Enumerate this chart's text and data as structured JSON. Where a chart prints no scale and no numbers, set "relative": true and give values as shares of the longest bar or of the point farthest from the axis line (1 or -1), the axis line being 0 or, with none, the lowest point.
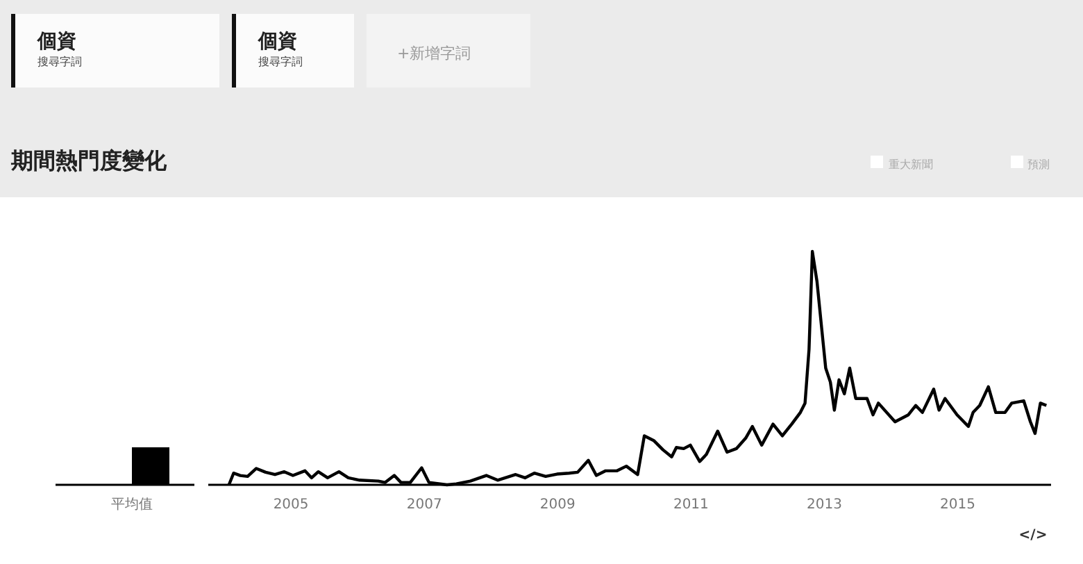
{
  "chart_data": [
    {
      "type": "bar",
      "relative": true,
      "categories": [
        "平均值"
      ],
      "series": [
        {
          "values": [
            null
          ]
        },
        {
          "color": "#000000",
          "values": [
            1
          ]
        }
      ]
    },
    {
      "type": "line",
      "title": "期間熱門度變化",
      "relative": true,
      "xlim": [
        2003.76,
        2016.4
      ],
      "xticks": [
        2005,
        2007,
        2009,
        2011,
        2013,
        2015
      ],
      "annotations": [
        "個資",
        "搜尋字詞",
        "個資",
        "搜尋字詞",
        "+新增字詞",
        "重大新聞",
        "預測",
        "</>"
      ],
      "series": [
        {
          "color": "#000000",
          "x": [
            2004.07,
            2004.14,
            2004.24,
            2004.35,
            2004.48,
            2004.62,
            2004.76,
            2004.9,
            2005.03,
            2005.21,
            2005.31,
            2005.41,
            2005.55,
            2005.72,
            2005.86,
            2006.03,
            2006.31,
            2006.41,
            2006.55,
            2006.65,
            2006.79,
            2006.96,
            2007.07,
            2007.34,
            2007.48,
            2007.69,
            2007.93,
            2008.1,
            2008.37,
            2008.51,
            2008.65,
            2008.82,
            2008.99,
            2009.17,
            2009.3,
            2009.46,
            2009.58,
            2009.72,
            2009.89,
            2010.03,
            2010.2,
            2010.3,
            2010.44,
            2010.58,
            2010.71,
            2010.78,
            2010.89,
            2010.99,
            2011.13,
            2011.23,
            2011.4,
            2011.54,
            2011.68,
            2011.82,
            2011.92,
            2012.06,
            2012.23,
            2012.37,
            2012.51,
            2012.64,
            2012.71,
            2012.77,
            2012.82,
            2012.89,
            2012.96,
            2013.02,
            2013.09,
            2013.15,
            2013.22,
            2013.3,
            2013.38,
            2013.47,
            2013.64,
            2013.73,
            2013.81,
            2014.06,
            2014.26,
            2014.37,
            2014.47,
            2014.64,
            2014.72,
            2014.81,
            2014.99,
            2015.16,
            2015.23,
            2015.33,
            2015.46,
            2015.57,
            2015.71,
            2015.81,
            2015.99,
            2016.09,
            2016.16,
            2016.24,
            2016.33
          ],
          "values": [
            0,
            0.05,
            0.04,
            0.036,
            0.07,
            0.054,
            0.044,
            0.056,
            0.04,
            0.06,
            0.03,
            0.056,
            0.03,
            0.056,
            0.03,
            0.02,
            0.016,
            0.01,
            0.04,
            0.01,
            0.01,
            0.073,
            0.01,
            0,
            0.004,
            0.016,
            0.04,
            0.02,
            0.044,
            0.03,
            0.05,
            0.036,
            0.046,
            0.05,
            0.054,
            0.105,
            0.04,
            0.06,
            0.06,
            0.08,
            0.044,
            0.21,
            0.19,
            0.15,
            0.12,
            0.16,
            0.155,
            0.17,
            0.1,
            0.13,
            0.23,
            0.14,
            0.155,
            0.2,
            0.25,
            0.17,
            0.26,
            0.21,
            0.26,
            0.31,
            0.35,
            0.58,
            1,
            0.87,
            0.67,
            0.5,
            0.44,
            0.32,
            0.45,
            0.39,
            0.5,
            0.37,
            0.37,
            0.3,
            0.35,
            0.27,
            0.3,
            0.34,
            0.31,
            0.41,
            0.32,
            0.37,
            0.3,
            0.25,
            0.31,
            0.34,
            0.42,
            0.31,
            0.31,
            0.35,
            0.36,
            0.27,
            0.22,
            0.35,
            0.34
          ]
        }
      ]
    }
  ]
}
